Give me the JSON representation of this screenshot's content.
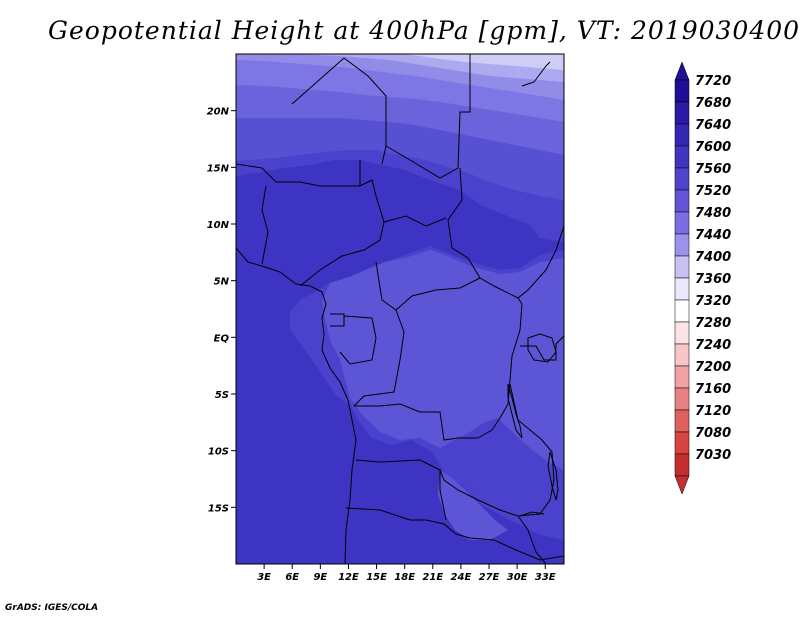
{
  "title": "Geopotential Height at 400hPa [gpm], VT: 2019030400",
  "credit": "GrADS: IGES/COLA",
  "map": {
    "lon_range": [
      0,
      35
    ],
    "lat_range": [
      -20,
      25
    ],
    "lat_ticks": [
      {
        "label": "20N",
        "value": 20
      },
      {
        "label": "15N",
        "value": 15
      },
      {
        "label": "10N",
        "value": 10
      },
      {
        "label": "5N",
        "value": 5
      },
      {
        "label": "EQ",
        "value": 0
      },
      {
        "label": "5S",
        "value": -5
      },
      {
        "label": "10S",
        "value": -10
      },
      {
        "label": "15S",
        "value": -15
      }
    ],
    "lon_ticks": [
      {
        "label": "3E",
        "value": 3
      },
      {
        "label": "6E",
        "value": 6
      },
      {
        "label": "9E",
        "value": 9
      },
      {
        "label": "12E",
        "value": 12
      },
      {
        "label": "15E",
        "value": 15
      },
      {
        "label": "18E",
        "value": 18
      },
      {
        "label": "21E",
        "value": 21
      },
      {
        "label": "24E",
        "value": 24
      },
      {
        "label": "27E",
        "value": 27
      },
      {
        "label": "30E",
        "value": 30
      },
      {
        "label": "33E",
        "value": 33
      }
    ]
  },
  "legend": {
    "levels": [
      {
        "label": "7720",
        "color": "#1e0f96"
      },
      {
        "label": "7680",
        "color": "#2a1aa6"
      },
      {
        "label": "7640",
        "color": "#3526b4"
      },
      {
        "label": "7600",
        "color": "#4234c0"
      },
      {
        "label": "7560",
        "color": "#5043cc"
      },
      {
        "label": "7520",
        "color": "#6455d8"
      },
      {
        "label": "7480",
        "color": "#7b6ee4"
      },
      {
        "label": "7440",
        "color": "#9c92ec"
      },
      {
        "label": "7400",
        "color": "#c7c1f4"
      },
      {
        "label": "7360",
        "color": "#ebe8fc"
      },
      {
        "label": "7320",
        "color": "#ffffff"
      },
      {
        "label": "7280",
        "color": "#fde4e4"
      },
      {
        "label": "7240",
        "color": "#f8c6c6"
      },
      {
        "label": "7200",
        "color": "#f2a2a2"
      },
      {
        "label": "7160",
        "color": "#e88282"
      },
      {
        "label": "7120",
        "color": "#e06060"
      },
      {
        "label": "7080",
        "color": "#d84444"
      },
      {
        "label": "7030",
        "color": "#c42e2e"
      }
    ]
  },
  "colors": {
    "band_7680": "#3d34c4",
    "band_7640": "#4a42cc",
    "band_7600": "#5650d2",
    "band_7560": "#6a63dc",
    "band_7520": "#7d76e4",
    "band_7480": "#928ce9",
    "band_7440": "#aeaaf0",
    "band_7400": "#cfcdf7"
  }
}
